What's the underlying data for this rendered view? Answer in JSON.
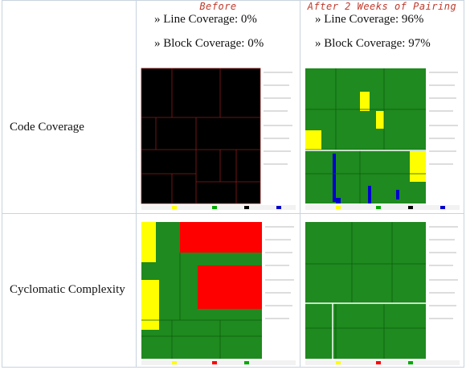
{
  "table": {
    "columns": [
      "Before",
      "After 2 Weeks of Pairing"
    ],
    "rows": [
      {
        "label": "Code Coverage",
        "before": [
          "» Line Coverage: 0%",
          "» Block Coverage: 0%"
        ],
        "after": [
          "» Line Coverage: 96%",
          "» Block Coverage: 97%"
        ]
      },
      {
        "label": "Cyclomatic Complexity"
      }
    ]
  }
}
